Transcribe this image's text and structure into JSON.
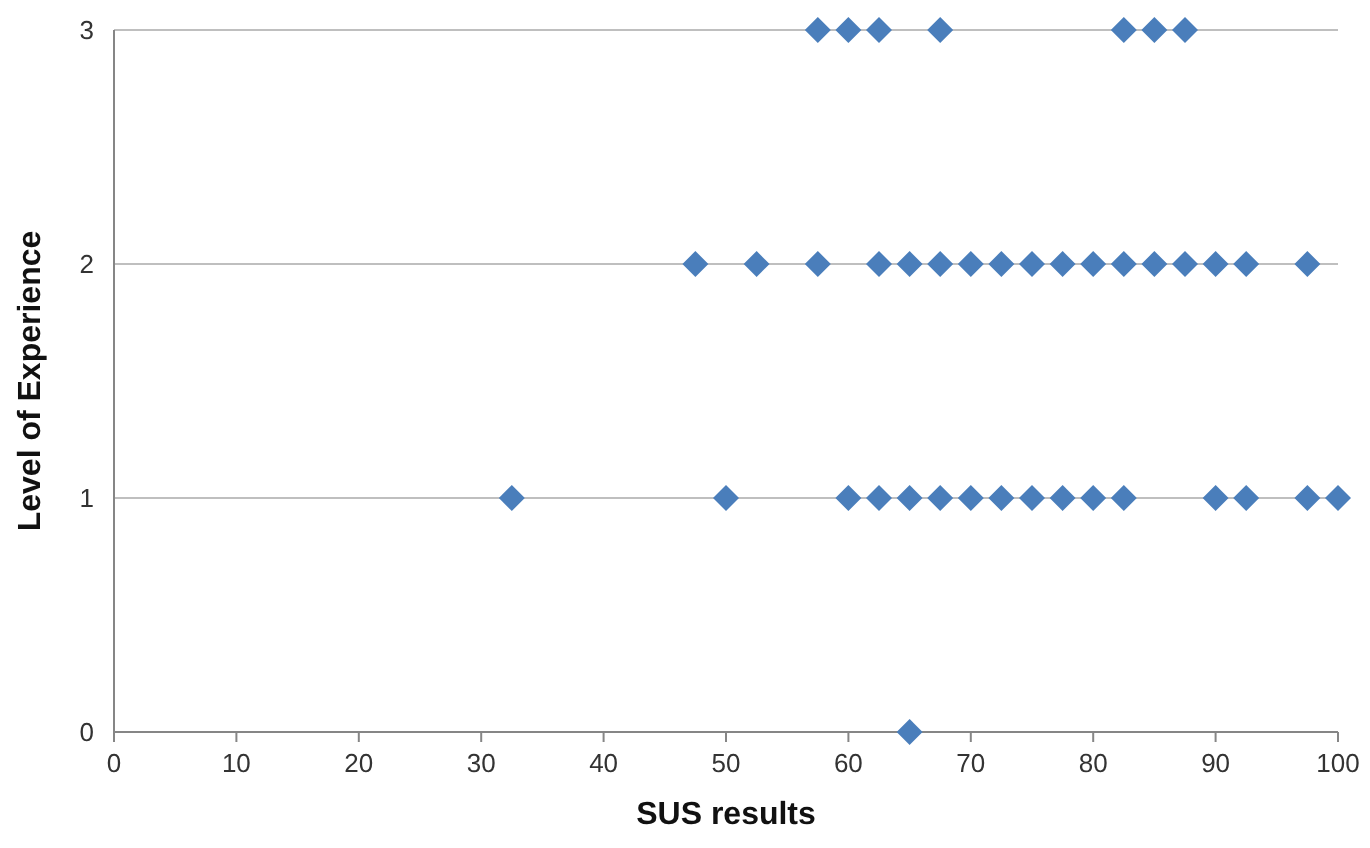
{
  "chart_data": {
    "type": "scatter",
    "xlabel": "SUS results",
    "ylabel": "Level of Experience",
    "xlim": [
      0,
      100
    ],
    "xticks": [
      0,
      10,
      20,
      30,
      40,
      50,
      60,
      70,
      80,
      90,
      100
    ],
    "ylim": [
      0,
      3
    ],
    "yticks": [
      0,
      1,
      2,
      3
    ],
    "grid": "y",
    "marker": "diamond",
    "series": [
      {
        "color": "#4a7ebb",
        "x": [
          57.5,
          60,
          62.5,
          67.5,
          82.5,
          85,
          87.5
        ],
        "values": [
          3,
          3,
          3,
          3,
          3,
          3,
          3
        ]
      },
      {
        "color": "#4a7ebb",
        "x": [
          47.5,
          52.5,
          57.5,
          62.5,
          65,
          67.5,
          70,
          72.5,
          75,
          77.5,
          80,
          82.5,
          85,
          87.5,
          90,
          92.5,
          97.5
        ],
        "values": [
          2,
          2,
          2,
          2,
          2,
          2,
          2,
          2,
          2,
          2,
          2,
          2,
          2,
          2,
          2,
          2,
          2
        ]
      },
      {
        "color": "#4a7ebb",
        "x": [
          32.5,
          50,
          60,
          62.5,
          65,
          67.5,
          70,
          72.5,
          75,
          77.5,
          80,
          82.5,
          90,
          92.5,
          97.5,
          100
        ],
        "values": [
          1,
          1,
          1,
          1,
          1,
          1,
          1,
          1,
          1,
          1,
          1,
          1,
          1,
          1,
          1,
          1
        ]
      },
      {
        "color": "#4a7ebb",
        "x": [
          65
        ],
        "values": [
          0
        ]
      }
    ]
  }
}
